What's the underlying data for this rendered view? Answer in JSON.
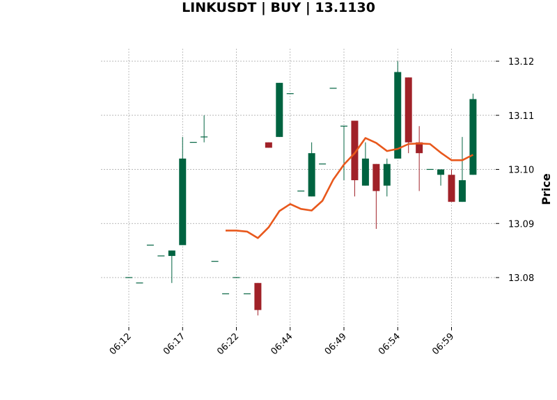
{
  "chart_data": {
    "type": "candlestick",
    "title": "LINKUSDT | BUY | 13.1130",
    "xlabel": "",
    "ylabel": "Price",
    "ylim": [
      13.071,
      13.123
    ],
    "yticks": [
      13.08,
      13.09,
      13.1,
      13.11,
      13.12
    ],
    "ytick_labels": [
      "13.08",
      "13.09",
      "13.10",
      "13.11",
      "13.12"
    ],
    "xtick_labels": [
      {
        "index": 0,
        "label": "06:12"
      },
      {
        "index": 5,
        "label": "06:17"
      },
      {
        "index": 10,
        "label": "06:22"
      },
      {
        "index": 15,
        "label": "06:44"
      },
      {
        "index": 20,
        "label": "06:49"
      },
      {
        "index": 25,
        "label": "06:54"
      },
      {
        "index": 30,
        "label": "06:59"
      }
    ],
    "grid": true,
    "colors": {
      "up": "#006340",
      "down": "#a02128",
      "line": "#e8581c"
    },
    "candles": [
      {
        "o": 13.08,
        "h": 13.08,
        "l": 13.08,
        "c": 13.08
      },
      {
        "o": 13.079,
        "h": 13.079,
        "l": 13.079,
        "c": 13.079
      },
      {
        "o": 13.086,
        "h": 13.086,
        "l": 13.086,
        "c": 13.086
      },
      {
        "o": 13.084,
        "h": 13.084,
        "l": 13.084,
        "c": 13.084
      },
      {
        "o": 13.084,
        "h": 13.085,
        "l": 13.079,
        "c": 13.085
      },
      {
        "o": 13.086,
        "h": 13.106,
        "l": 13.086,
        "c": 13.102
      },
      {
        "o": 13.105,
        "h": 13.105,
        "l": 13.105,
        "c": 13.105
      },
      {
        "o": 13.106,
        "h": 13.11,
        "l": 13.105,
        "c": 13.106
      },
      {
        "o": 13.083,
        "h": 13.083,
        "l": 13.083,
        "c": 13.083
      },
      {
        "o": 13.077,
        "h": 13.077,
        "l": 13.077,
        "c": 13.077
      },
      {
        "o": 13.08,
        "h": 13.08,
        "l": 13.08,
        "c": 13.08
      },
      {
        "o": 13.077,
        "h": 13.077,
        "l": 13.077,
        "c": 13.077
      },
      {
        "o": 13.079,
        "h": 13.079,
        "l": 13.073,
        "c": 13.074
      },
      {
        "o": 13.105,
        "h": 13.105,
        "l": 13.104,
        "c": 13.104
      },
      {
        "o": 13.106,
        "h": 13.116,
        "l": 13.106,
        "c": 13.116
      },
      {
        "o": 13.114,
        "h": 13.114,
        "l": 13.114,
        "c": 13.114
      },
      {
        "o": 13.096,
        "h": 13.096,
        "l": 13.096,
        "c": 13.096
      },
      {
        "o": 13.095,
        "h": 13.105,
        "l": 13.095,
        "c": 13.103
      },
      {
        "o": 13.101,
        "h": 13.101,
        "l": 13.101,
        "c": 13.101
      },
      {
        "o": 13.115,
        "h": 13.115,
        "l": 13.115,
        "c": 13.115
      },
      {
        "o": 13.108,
        "h": 13.108,
        "l": 13.098,
        "c": 13.108
      },
      {
        "o": 13.109,
        "h": 13.109,
        "l": 13.095,
        "c": 13.098
      },
      {
        "o": 13.097,
        "h": 13.105,
        "l": 13.097,
        "c": 13.102
      },
      {
        "o": 13.101,
        "h": 13.101,
        "l": 13.089,
        "c": 13.096
      },
      {
        "o": 13.097,
        "h": 13.102,
        "l": 13.095,
        "c": 13.101
      },
      {
        "o": 13.102,
        "h": 13.12,
        "l": 13.102,
        "c": 13.118
      },
      {
        "o": 13.117,
        "h": 13.117,
        "l": 13.103,
        "c": 13.105
      },
      {
        "o": 13.105,
        "h": 13.108,
        "l": 13.096,
        "c": 13.103
      },
      {
        "o": 13.1,
        "h": 13.1,
        "l": 13.1,
        "c": 13.1
      },
      {
        "o": 13.099,
        "h": 13.1,
        "l": 13.097,
        "c": 13.1
      },
      {
        "o": 13.099,
        "h": 13.1,
        "l": 13.094,
        "c": 13.094
      },
      {
        "o": 13.094,
        "h": 13.106,
        "l": 13.094,
        "c": 13.098
      },
      {
        "o": 13.099,
        "h": 13.114,
        "l": 13.099,
        "c": 13.113
      }
    ],
    "moving_average": {
      "start_index": 9,
      "values": [
        13.0887,
        13.0887,
        13.0885,
        13.0873,
        13.0893,
        13.0923,
        13.0936,
        13.0927,
        13.0924,
        13.0942,
        13.0981,
        13.1009,
        13.103,
        13.1058,
        13.1049,
        13.1034,
        13.1038,
        13.1047,
        13.1048,
        13.1047,
        13.1031,
        13.1017,
        13.1017,
        13.1027
      ]
    }
  }
}
